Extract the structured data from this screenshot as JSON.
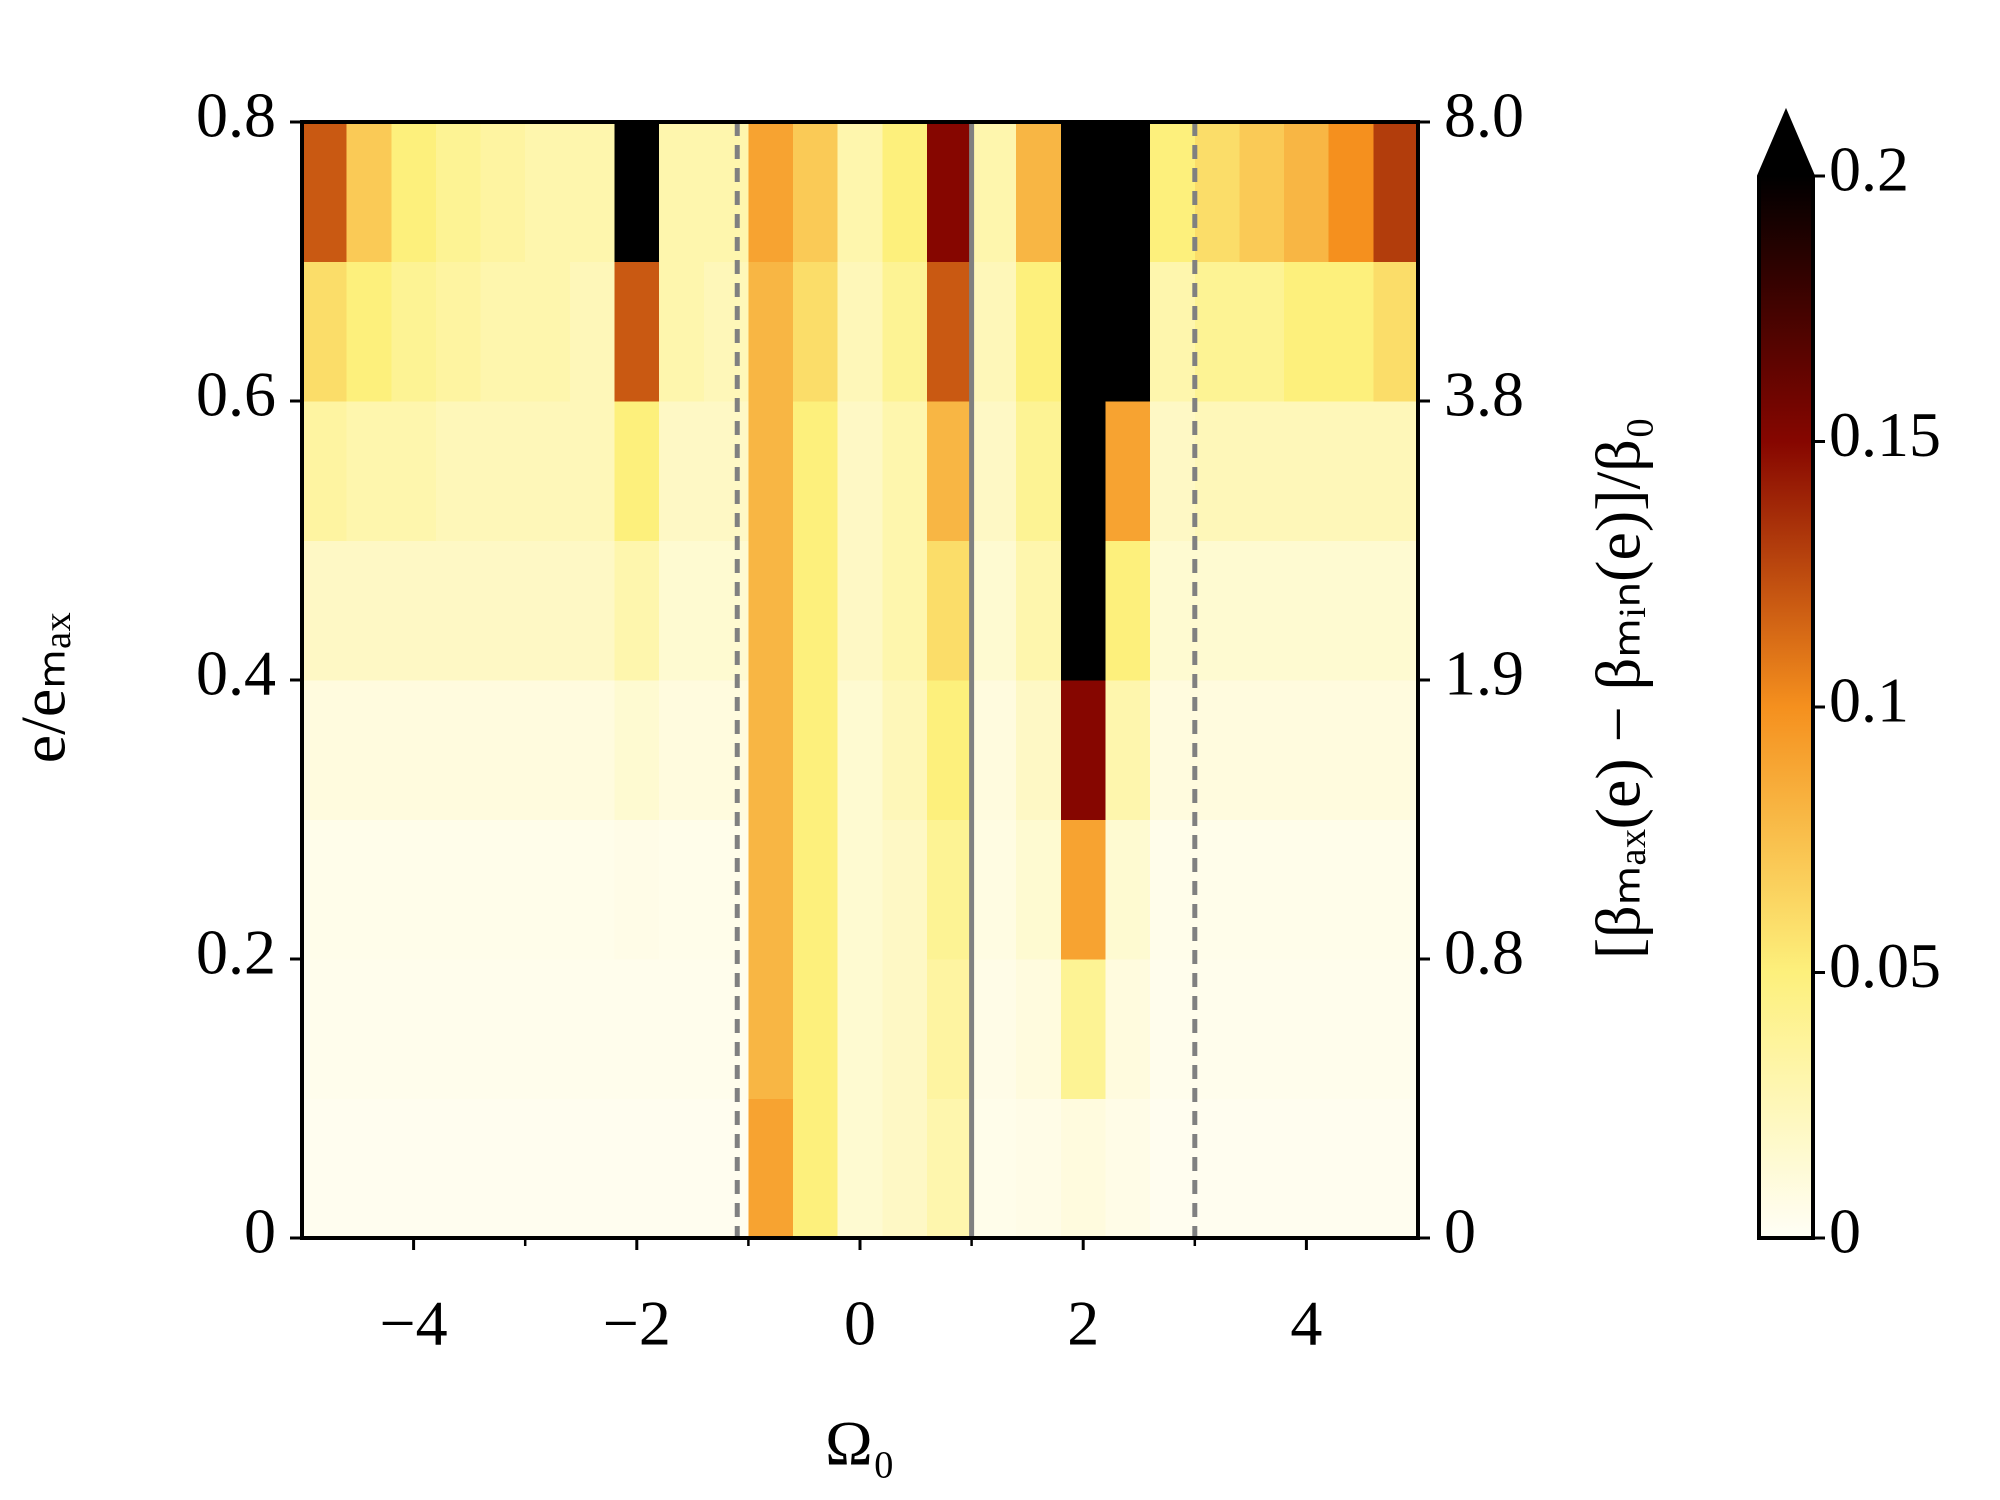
{
  "chart_data": {
    "type": "heatmap",
    "xlabel": "Ω₀",
    "ylabel": "e/eₘₐₓ",
    "y2label": "[βₘₐₓ(e) − βₘᵢₙ(e)]/β₀",
    "x": [
      -4.8,
      -4.4,
      -4.0,
      -3.6,
      -3.2,
      -2.8,
      -2.4,
      -2.0,
      -1.6,
      -1.2,
      -0.8,
      -0.4,
      0,
      0.4,
      0.8,
      1.2,
      1.6,
      2.0,
      2.4,
      2.8,
      3.2,
      3.6,
      4.0,
      4.4,
      4.8
    ],
    "y": [
      0.05,
      0.15,
      0.25,
      0.35,
      0.45,
      0.55,
      0.65,
      0.75
    ],
    "z": [
      [
        0.003,
        0.003,
        0.003,
        0.003,
        0.003,
        0.003,
        0.003,
        0.003,
        0.003,
        0.003,
        0.09,
        0.05,
        0.015,
        0.02,
        0.03,
        0.005,
        0.006,
        0.01,
        0.006,
        0.003,
        0.003,
        0.003,
        0.003,
        0.003,
        0.003
      ],
      [
        0.004,
        0.004,
        0.004,
        0.004,
        0.004,
        0.004,
        0.004,
        0.004,
        0.004,
        0.004,
        0.08,
        0.05,
        0.015,
        0.02,
        0.035,
        0.006,
        0.01,
        0.04,
        0.01,
        0.004,
        0.004,
        0.004,
        0.004,
        0.004,
        0.004
      ],
      [
        0.005,
        0.005,
        0.005,
        0.005,
        0.005,
        0.005,
        0.005,
        0.006,
        0.005,
        0.005,
        0.08,
        0.05,
        0.015,
        0.02,
        0.04,
        0.008,
        0.015,
        0.09,
        0.015,
        0.005,
        0.005,
        0.005,
        0.005,
        0.005,
        0.005
      ],
      [
        0.01,
        0.01,
        0.01,
        0.01,
        0.01,
        0.01,
        0.01,
        0.015,
        0.01,
        0.01,
        0.08,
        0.05,
        0.015,
        0.025,
        0.05,
        0.01,
        0.02,
        0.15,
        0.03,
        0.01,
        0.01,
        0.01,
        0.01,
        0.01,
        0.01
      ],
      [
        0.02,
        0.02,
        0.02,
        0.02,
        0.02,
        0.02,
        0.02,
        0.03,
        0.015,
        0.015,
        0.08,
        0.05,
        0.02,
        0.03,
        0.06,
        0.015,
        0.03,
        0.2,
        0.05,
        0.015,
        0.015,
        0.015,
        0.015,
        0.015,
        0.015
      ],
      [
        0.035,
        0.03,
        0.03,
        0.025,
        0.025,
        0.025,
        0.025,
        0.05,
        0.02,
        0.02,
        0.08,
        0.05,
        0.02,
        0.03,
        0.08,
        0.02,
        0.04,
        0.22,
        0.09,
        0.02,
        0.025,
        0.025,
        0.025,
        0.025,
        0.025
      ],
      [
        0.06,
        0.05,
        0.04,
        0.035,
        0.03,
        0.03,
        0.025,
        0.12,
        0.03,
        0.025,
        0.08,
        0.06,
        0.025,
        0.04,
        0.12,
        0.025,
        0.05,
        0.25,
        0.2,
        0.03,
        0.04,
        0.04,
        0.05,
        0.05,
        0.06
      ],
      [
        0.12,
        0.07,
        0.05,
        0.04,
        0.035,
        0.03,
        0.03,
        0.2,
        0.03,
        0.03,
        0.09,
        0.07,
        0.03,
        0.05,
        0.15,
        0.03,
        0.08,
        0.25,
        0.25,
        0.05,
        0.06,
        0.07,
        0.08,
        0.1,
        0.13
      ]
    ],
    "xlim": [
      -5,
      5
    ],
    "ylim": [
      0,
      0.8
    ],
    "xticks": [
      {
        "value": -4,
        "label": "−4"
      },
      {
        "value": -2,
        "label": "−2"
      },
      0,
      2,
      4
    ],
    "xminorticks": [
      -3,
      -1,
      1,
      3
    ],
    "yticks": [
      0,
      0.2,
      0.4,
      0.6,
      0.8
    ],
    "y2ticks": [
      0,
      0.8,
      1.9,
      3.8,
      {
        "value": 8,
        "label": "8.0"
      }
    ],
    "vlines": [
      {
        "x": -1.1,
        "style": "dashed",
        "color": "#808080"
      },
      {
        "x": 1,
        "style": "solid",
        "color": "#808080"
      },
      {
        "x": 3,
        "style": "dashed",
        "color": "#808080"
      }
    ],
    "colorbar": {
      "lim": [
        0,
        0.2
      ],
      "ticks": [
        0,
        0.05,
        0.1,
        0.15,
        0.2
      ],
      "colors": [
        "#fffef6",
        "#fdf07c",
        "#f5901e",
        "#860600",
        "#000000"
      ],
      "extend": "max"
    }
  }
}
